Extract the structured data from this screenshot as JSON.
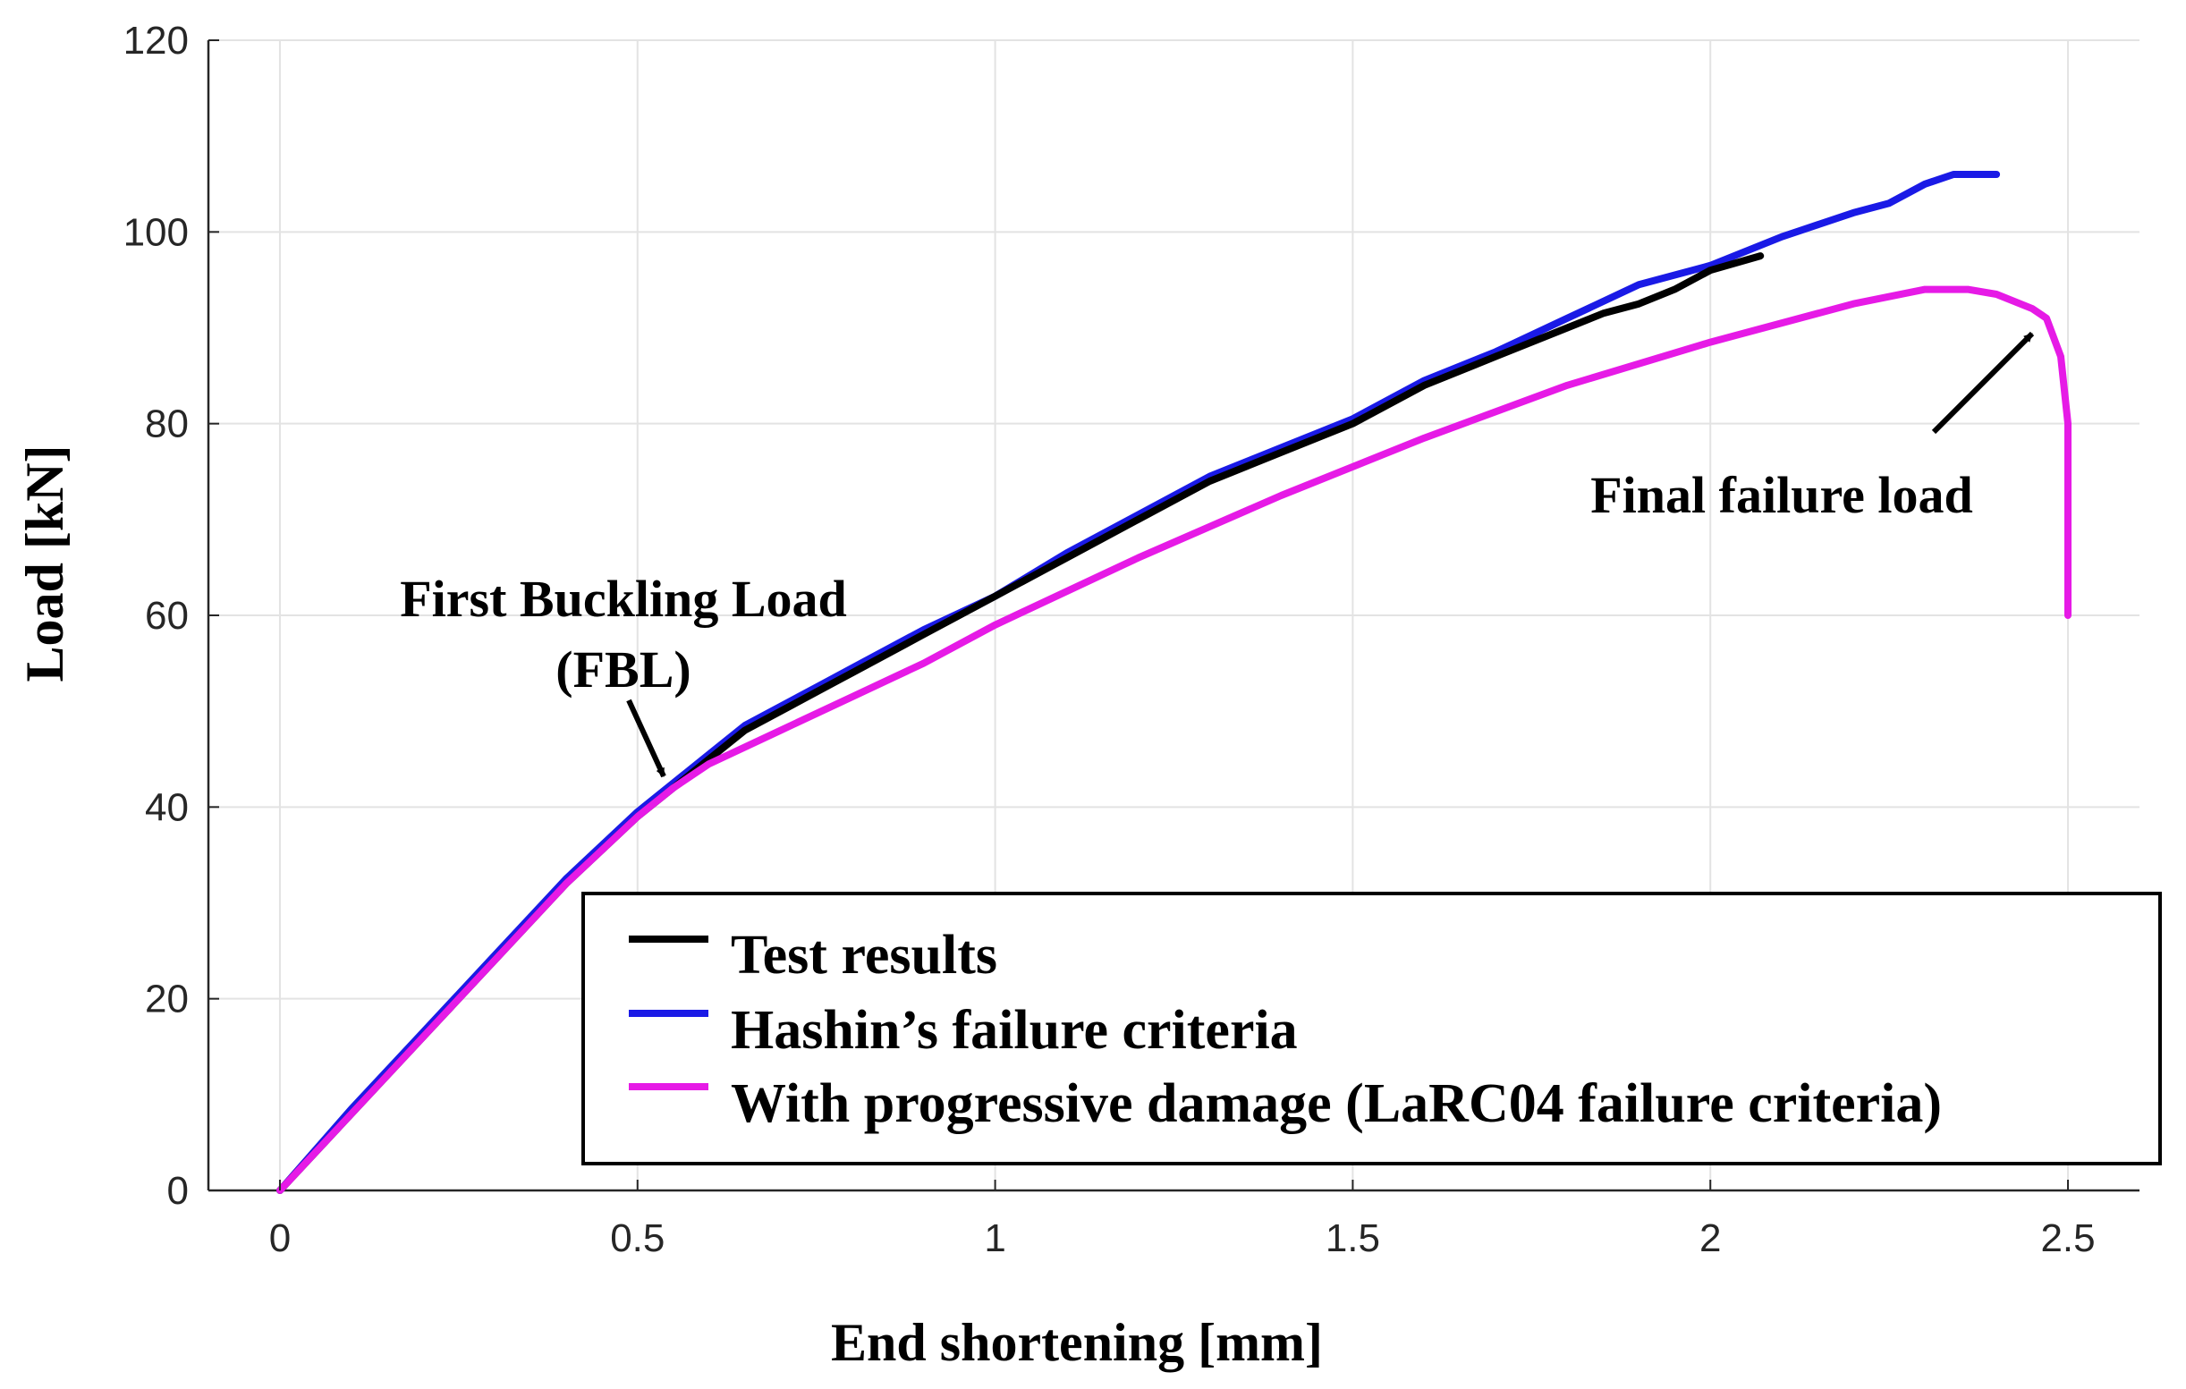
{
  "chart_data": {
    "type": "line",
    "xlabel": "End shortening [mm]",
    "ylabel": "Load [kN]",
    "xlim": [
      -0.1,
      2.6
    ],
    "ylim": [
      0,
      120
    ],
    "xticks": [
      0,
      0.5,
      1,
      1.5,
      2,
      2.5
    ],
    "xtick_labels": [
      "0",
      "0.5",
      "1",
      "1.5",
      "2",
      "2.5"
    ],
    "yticks": [
      0,
      20,
      40,
      60,
      80,
      100,
      120
    ],
    "ytick_labels": [
      "0",
      "20",
      "40",
      "60",
      "80",
      "100",
      "120"
    ],
    "grid": true,
    "legend_position": "bottom-right",
    "series": [
      {
        "name": "Test results",
        "color": "#000000",
        "x": [
          0,
          0.1,
          0.2,
          0.3,
          0.4,
          0.5,
          0.55,
          0.6,
          0.65,
          0.7,
          0.75,
          0.8,
          0.9,
          1.0,
          1.1,
          1.2,
          1.3,
          1.4,
          1.5,
          1.6,
          1.7,
          1.8,
          1.85,
          1.9,
          1.95,
          2.0,
          2.07
        ],
        "y": [
          0,
          8,
          16,
          24,
          32,
          39,
          42,
          45,
          48,
          50,
          52,
          54,
          58,
          62,
          66,
          70,
          74,
          77,
          80,
          84,
          87,
          90,
          91.5,
          92.5,
          94,
          96,
          97.5
        ]
      },
      {
        "name": "Hashin’s failure criteria",
        "color": "#1a1ae6",
        "x": [
          0,
          0.1,
          0.2,
          0.3,
          0.4,
          0.5,
          0.55,
          0.6,
          0.65,
          0.7,
          0.75,
          0.8,
          0.9,
          1.0,
          1.1,
          1.2,
          1.3,
          1.4,
          1.5,
          1.6,
          1.7,
          1.8,
          1.9,
          2.0,
          2.1,
          2.2,
          2.25,
          2.3,
          2.34,
          2.4
        ],
        "y": [
          0,
          8.5,
          16.5,
          24.5,
          32.5,
          39.5,
          42.5,
          45.5,
          48.5,
          50.5,
          52.5,
          54.5,
          58.5,
          62,
          66.5,
          70.5,
          74.5,
          77.5,
          80.5,
          84.5,
          87.5,
          91,
          94.5,
          96.5,
          99.5,
          102,
          103,
          105,
          106,
          106
        ]
      },
      {
        "name": "With progressive damage (LaRC04 failure criteria)",
        "color": "#e61ae6",
        "x": [
          0,
          0.1,
          0.2,
          0.3,
          0.4,
          0.5,
          0.55,
          0.6,
          0.7,
          0.8,
          0.9,
          1.0,
          1.2,
          1.4,
          1.6,
          1.8,
          2.0,
          2.2,
          2.3,
          2.36,
          2.4,
          2.45,
          2.47,
          2.49,
          2.5,
          2.5
        ],
        "y": [
          0,
          8,
          16,
          24,
          32,
          39,
          42,
          44.5,
          48,
          51.5,
          55,
          59,
          66,
          72.5,
          78.5,
          84,
          88.5,
          92.5,
          94,
          94,
          93.5,
          92,
          91,
          87,
          80,
          60
        ]
      }
    ],
    "annotations": [
      {
        "lines": [
          "First Buckling Load",
          "(FBL)"
        ],
        "x": 0.53,
        "y": 41
      },
      {
        "lines": [
          "Final failure load"
        ],
        "x": 2.47,
        "y": 91
      }
    ]
  }
}
